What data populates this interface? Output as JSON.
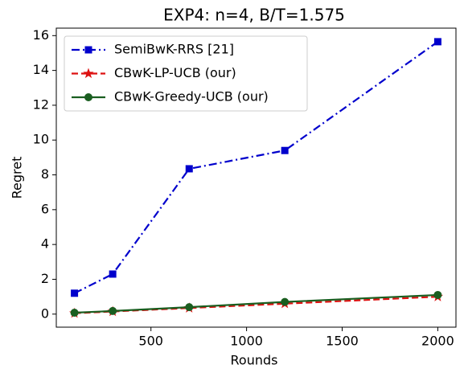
{
  "chart_data": {
    "type": "line",
    "title": "EXP4: n=4, B/T=1.575",
    "xlabel": "Rounds",
    "ylabel": "Regret",
    "x": [
      100,
      300,
      700,
      1200,
      2000
    ],
    "series": [
      {
        "name": "SemiBwK-RRS [21]",
        "color": "#0000cc",
        "marker": "square",
        "linestyle": "dashdot",
        "values": [
          1.2,
          2.3,
          8.35,
          9.4,
          15.65
        ]
      },
      {
        "name": "CBwK-LP-UCB (our)",
        "color": "#dd1111",
        "marker": "star",
        "linestyle": "dashed",
        "values": [
          0.05,
          0.15,
          0.35,
          0.6,
          1.0
        ]
      },
      {
        "name": "CBwK-Greedy-UCB (our)",
        "color": "#1a5e20",
        "marker": "circle",
        "linestyle": "solid",
        "values": [
          0.08,
          0.18,
          0.4,
          0.7,
          1.1
        ]
      }
    ],
    "xlim": [
      5,
      2095
    ],
    "xticks": [
      500,
      1000,
      1500,
      2000
    ],
    "ylim": [
      -0.75,
      16.43
    ],
    "yticks": [
      0,
      2,
      4,
      6,
      8,
      10,
      12,
      14,
      16
    ],
    "legend": "upper left"
  }
}
